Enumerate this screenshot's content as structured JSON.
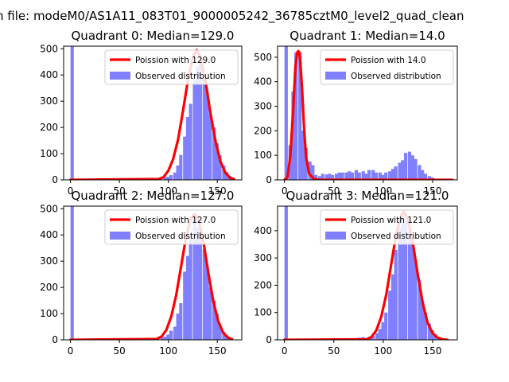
{
  "figure": {
    "suptitle": "n file: modeM0/AS1A11_083T01_9000005242_36785cztM0_level2_quad_clean",
    "hist_color": "#8080ff",
    "line_color": "#ff0000"
  },
  "chart_data": [
    {
      "type": "bar",
      "title": "Quadrant 0: Median=129.0",
      "xlim": [
        -7,
        175
      ],
      "ylim": [
        0,
        510
      ],
      "xticks": [
        0,
        50,
        100,
        150
      ],
      "yticks": [
        0,
        100,
        200,
        300,
        400,
        500
      ],
      "bin_width": 3.4,
      "zero_bin": 510,
      "bins": [
        [
          0,
          510
        ],
        [
          78,
          5
        ],
        [
          81,
          8
        ],
        [
          95,
          10
        ],
        [
          98,
          12
        ],
        [
          101,
          18
        ],
        [
          105,
          28
        ],
        [
          108,
          55
        ],
        [
          111,
          95
        ],
        [
          115,
          165
        ],
        [
          118,
          240
        ],
        [
          121,
          290
        ],
        [
          125,
          380
        ],
        [
          128,
          430
        ],
        [
          131,
          455
        ],
        [
          135,
          400
        ],
        [
          138,
          330
        ],
        [
          141,
          250
        ],
        [
          145,
          200
        ],
        [
          148,
          140
        ],
        [
          151,
          95
        ],
        [
          155,
          55
        ],
        [
          158,
          30
        ],
        [
          161,
          15
        ],
        [
          165,
          6
        ]
      ],
      "poisson": {
        "label": "Poission with 129.0",
        "x": [
          0,
          90,
          95,
          100,
          105,
          110,
          115,
          120,
          125,
          129,
          133,
          138,
          143,
          148,
          153,
          158,
          163,
          167
        ],
        "y": [
          0,
          3,
          10,
          35,
          80,
          155,
          265,
          380,
          470,
          495,
          465,
          375,
          255,
          150,
          72,
          28,
          8,
          2
        ]
      },
      "legend": [
        "Poission with 129.0",
        "Observed distribution"
      ]
    },
    {
      "type": "bar",
      "title": "Quadrant 1: Median=14.0",
      "xlim": [
        -7,
        175
      ],
      "ylim": [
        0,
        545
      ],
      "xticks": [
        0,
        50,
        100,
        150
      ],
      "yticks": [
        0,
        100,
        200,
        300,
        400,
        500
      ],
      "bin_width": 3.4,
      "zero_bin": 545,
      "bins": [
        [
          0,
          545
        ],
        [
          4,
          140
        ],
        [
          7,
          360
        ],
        [
          10,
          520
        ],
        [
          14,
          520
        ],
        [
          17,
          200
        ],
        [
          20,
          130
        ],
        [
          24,
          75
        ],
        [
          27,
          60
        ],
        [
          30,
          20
        ],
        [
          34,
          15
        ],
        [
          37,
          25
        ],
        [
          41,
          22
        ],
        [
          44,
          25
        ],
        [
          47,
          20
        ],
        [
          51,
          25
        ],
        [
          54,
          30
        ],
        [
          57,
          30
        ],
        [
          61,
          30
        ],
        [
          64,
          35
        ],
        [
          67,
          30
        ],
        [
          71,
          40
        ],
        [
          74,
          30
        ],
        [
          78,
          35
        ],
        [
          81,
          25
        ],
        [
          84,
          40
        ],
        [
          88,
          40
        ],
        [
          91,
          30
        ],
        [
          95,
          30
        ],
        [
          98,
          20
        ],
        [
          101,
          30
        ],
        [
          105,
          35
        ],
        [
          108,
          45
        ],
        [
          111,
          55
        ],
        [
          115,
          70
        ],
        [
          118,
          80
        ],
        [
          121,
          110
        ],
        [
          125,
          115
        ],
        [
          128,
          100
        ],
        [
          131,
          85
        ],
        [
          135,
          60
        ],
        [
          138,
          40
        ],
        [
          141,
          25
        ],
        [
          145,
          15
        ],
        [
          148,
          10
        ]
      ],
      "poisson": {
        "label": "Poission with 14.0",
        "x": [
          0,
          3,
          6,
          9,
          11,
          13,
          14,
          15,
          16,
          18,
          20,
          22,
          25,
          30,
          36,
          170
        ],
        "y": [
          0,
          10,
          100,
          300,
          460,
          520,
          525,
          520,
          480,
          360,
          200,
          90,
          25,
          3,
          0,
          0
        ]
      },
      "legend": [
        "Poission with 14.0",
        "Observed distribution"
      ]
    },
    {
      "type": "bar",
      "title": "Quadrant 2: Median=127.0",
      "xlim": [
        -7,
        175
      ],
      "ylim": [
        0,
        510
      ],
      "xticks": [
        0,
        50,
        100,
        150
      ],
      "yticks": [
        0,
        100,
        200,
        300,
        400,
        500
      ],
      "bin_width": 3.4,
      "zero_bin": 510,
      "bins": [
        [
          0,
          510
        ],
        [
          78,
          5
        ],
        [
          85,
          6
        ],
        [
          92,
          10
        ],
        [
          95,
          12
        ],
        [
          98,
          20
        ],
        [
          101,
          35
        ],
        [
          105,
          50
        ],
        [
          108,
          100
        ],
        [
          111,
          140
        ],
        [
          115,
          260
        ],
        [
          118,
          320
        ],
        [
          121,
          400
        ],
        [
          125,
          460
        ],
        [
          128,
          430
        ],
        [
          131,
          410
        ],
        [
          135,
          345
        ],
        [
          138,
          280
        ],
        [
          141,
          200
        ],
        [
          145,
          150
        ],
        [
          148,
          100
        ],
        [
          151,
          55
        ],
        [
          155,
          30
        ],
        [
          158,
          15
        ],
        [
          161,
          6
        ]
      ],
      "poisson": {
        "label": "Poission with 127.0",
        "x": [
          0,
          88,
          93,
          98,
          103,
          108,
          113,
          118,
          123,
          127,
          131,
          136,
          141,
          146,
          151,
          156,
          161,
          165
        ],
        "y": [
          0,
          3,
          12,
          38,
          90,
          170,
          280,
          390,
          465,
          480,
          455,
          370,
          250,
          145,
          70,
          27,
          8,
          2
        ]
      },
      "legend": [
        "Poission with 127.0",
        "Observed distribution"
      ]
    },
    {
      "type": "bar",
      "title": "Quadrant 3: Median=121.0",
      "xlim": [
        -7,
        175
      ],
      "ylim": [
        0,
        490
      ],
      "xticks": [
        0,
        50,
        100,
        150
      ],
      "yticks": [
        0,
        100,
        200,
        300,
        400
      ],
      "bin_width": 3.4,
      "zero_bin": 490,
      "bins": [
        [
          0,
          490
        ],
        [
          74,
          8
        ],
        [
          78,
          10
        ],
        [
          85,
          12
        ],
        [
          88,
          15
        ],
        [
          92,
          25
        ],
        [
          95,
          40
        ],
        [
          98,
          65
        ],
        [
          101,
          100
        ],
        [
          105,
          180
        ],
        [
          108,
          240
        ],
        [
          111,
          330
        ],
        [
          115,
          410
        ],
        [
          118,
          455
        ],
        [
          121,
          430
        ],
        [
          125,
          400
        ],
        [
          128,
          360
        ],
        [
          131,
          290
        ],
        [
          135,
          220
        ],
        [
          138,
          140
        ],
        [
          141,
          100
        ],
        [
          145,
          60
        ],
        [
          148,
          35
        ],
        [
          151,
          20
        ],
        [
          155,
          10
        ]
      ],
      "poisson": {
        "label": "Poission with 121.0",
        "x": [
          0,
          83,
          88,
          93,
          98,
          103,
          108,
          113,
          118,
          121,
          125,
          130,
          135,
          140,
          145,
          150,
          155,
          160,
          165
        ],
        "y": [
          0,
          2,
          10,
          35,
          85,
          165,
          275,
          385,
          455,
          470,
          440,
          355,
          240,
          135,
          62,
          24,
          8,
          2,
          0
        ]
      },
      "legend": [
        "Poission with 121.0",
        "Observed distribution"
      ]
    }
  ]
}
